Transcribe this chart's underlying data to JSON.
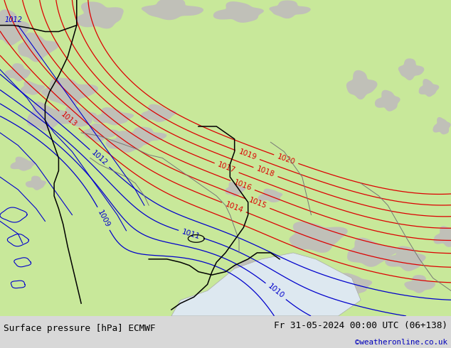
{
  "title_left": "Surface pressure [hPa] ECMWF",
  "title_right": "Fr 31-05-2024 00:00 UTC (06+138)",
  "credit": "©weatheronline.co.uk",
  "bg_color": "#c8e89a",
  "mountain_color": "#c0c0b8",
  "contour_color_red": "#dd0000",
  "contour_color_blue": "#0000cc",
  "contour_color_black": "#000000",
  "bottom_bar_color": "#d8d8d8",
  "bottom_text_color": "#000000",
  "credit_color": "#0000bb",
  "figsize": [
    6.34,
    4.9
  ],
  "dpi": 100,
  "bottom_bar_height": 0.092,
  "title_fontsize": 9.2,
  "credit_fontsize": 7.8,
  "contour_label_fontsize": 7.5,
  "contour_linewidth": 0.9
}
